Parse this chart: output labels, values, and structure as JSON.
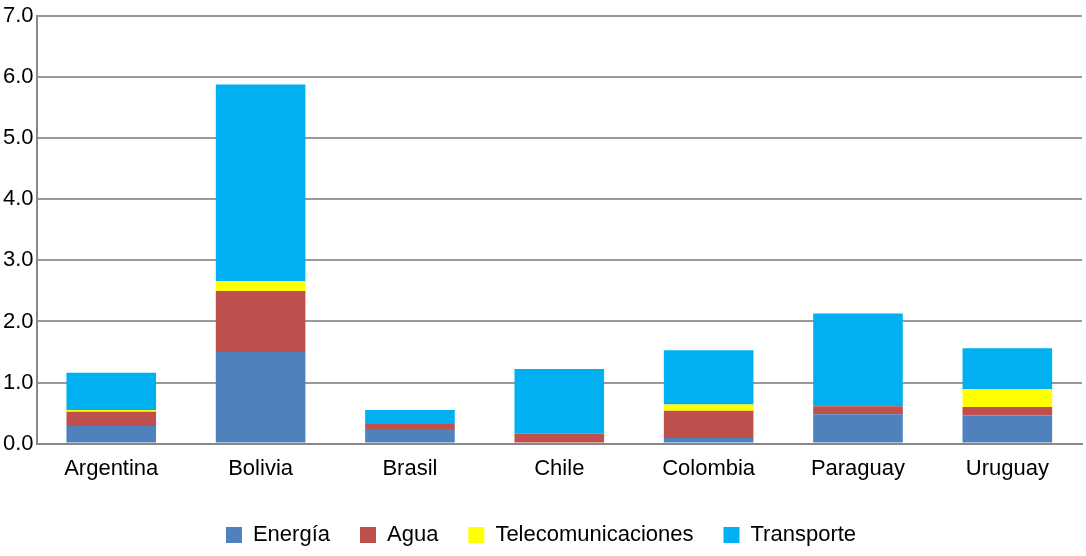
{
  "chart_data": {
    "type": "bar",
    "stacked": true,
    "categories": [
      "Argentina",
      "Bolivia",
      "Brasil",
      "Chile",
      "Colombia",
      "Paraguay",
      "Uruguay"
    ],
    "series": [
      {
        "name": "Energía",
        "color": "#4f81bd",
        "values": [
          0.29,
          1.5,
          0.24,
          null,
          0.09,
          0.48,
          0.46
        ]
      },
      {
        "name": "Agua",
        "color": "#c0504d",
        "values": [
          0.23,
          1.0,
          0.08,
          0.16,
          0.45,
          0.13,
          0.14
        ]
      },
      {
        "name": "Telecomunicaciones",
        "color": "#ffff00",
        "values": [
          0.03,
          0.16,
          0.0,
          null,
          0.1,
          0.0,
          0.29
        ]
      },
      {
        "name": "Transporte",
        "color": "#00b0f0",
        "values": [
          0.61,
          3.22,
          0.23,
          1.06,
          0.89,
          1.52,
          0.67
        ]
      }
    ],
    "ylim": [
      0,
      7
    ],
    "yticks": [
      {
        "value": 0,
        "label": "0.0"
      },
      {
        "value": 1,
        "label": "1.0"
      },
      {
        "value": 2,
        "label": "2.0"
      },
      {
        "value": 3,
        "label": "3.0"
      },
      {
        "value": 4,
        "label": "4.0"
      },
      {
        "value": 5,
        "label": "5.0"
      },
      {
        "value": 6,
        "label": "6.0"
      },
      {
        "value": 7,
        "label": "7.0"
      }
    ],
    "grid": "y",
    "legend": "bottom"
  }
}
